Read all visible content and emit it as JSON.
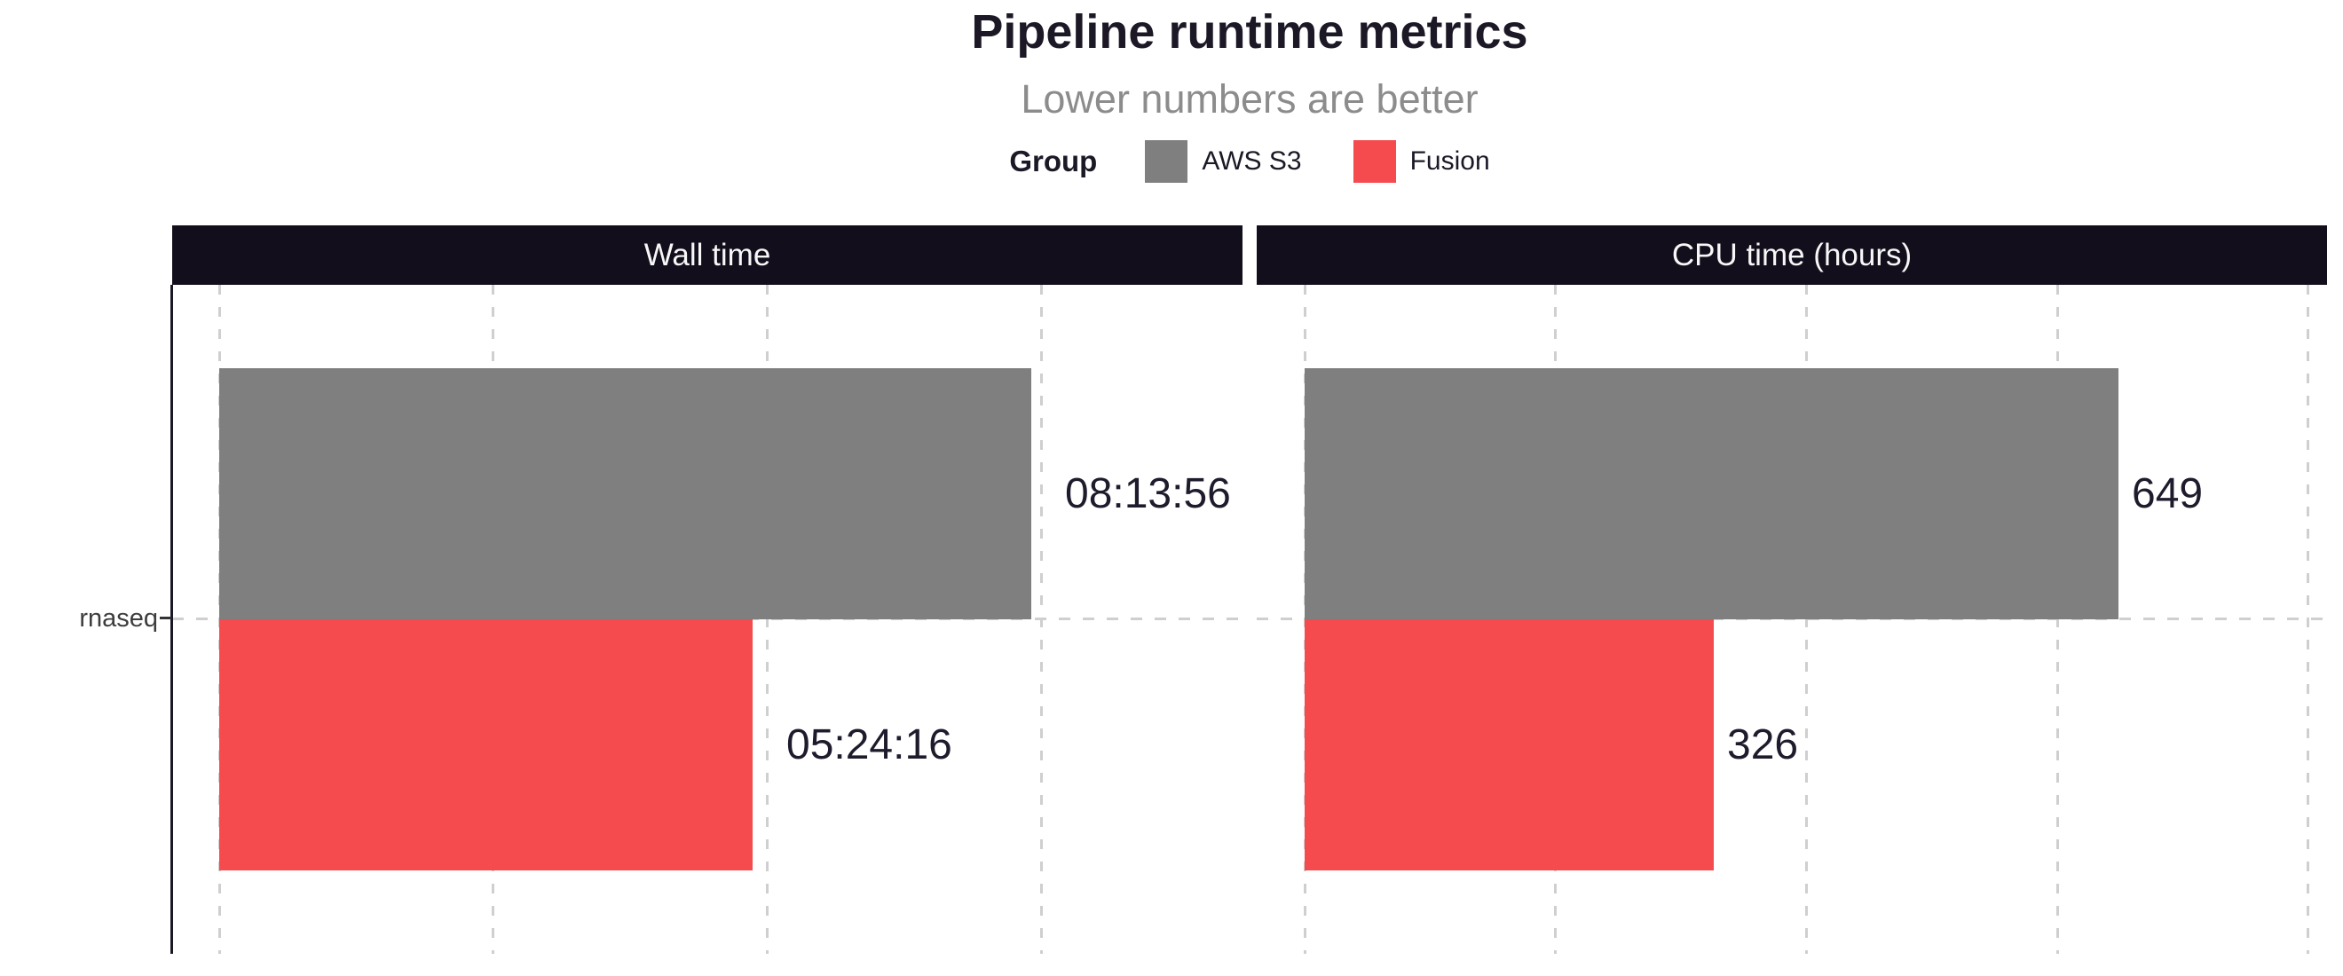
{
  "chart_data": {
    "type": "bar",
    "orientation": "horizontal",
    "title": "Pipeline runtime metrics",
    "subtitle": "Lower numbers are better",
    "grid": "dashed",
    "legend": {
      "title": "Group",
      "position": "top",
      "entries": [
        {
          "name": "AWS S3",
          "color": "#7f7f7f"
        },
        {
          "name": "Fusion",
          "color": "#f54b4e"
        }
      ]
    },
    "y_axis": {
      "categories": [
        "rnaseq"
      ],
      "tick_label": "rnaseq"
    },
    "facets": [
      {
        "title": "Wall time",
        "unit": "seconds",
        "xlim": [
          0,
          37344
        ],
        "grid_breaks": [
          0,
          10000,
          20000,
          30000
        ],
        "bars": [
          {
            "group": "AWS S3",
            "category": "rnaseq",
            "value": 29636,
            "label": "08:13:56"
          },
          {
            "group": "Fusion",
            "category": "rnaseq",
            "value": 19456,
            "label": "05:24:16"
          }
        ]
      },
      {
        "title": "CPU time (hours)",
        "unit": "hours",
        "xlim": [
          0,
          815
        ],
        "grid_breaks": [
          0,
          200,
          400,
          600,
          800
        ],
        "bars": [
          {
            "group": "AWS S3",
            "category": "rnaseq",
            "value": 649,
            "label": "649"
          },
          {
            "group": "Fusion",
            "category": "rnaseq",
            "value": 326,
            "label": "326"
          }
        ]
      }
    ]
  }
}
